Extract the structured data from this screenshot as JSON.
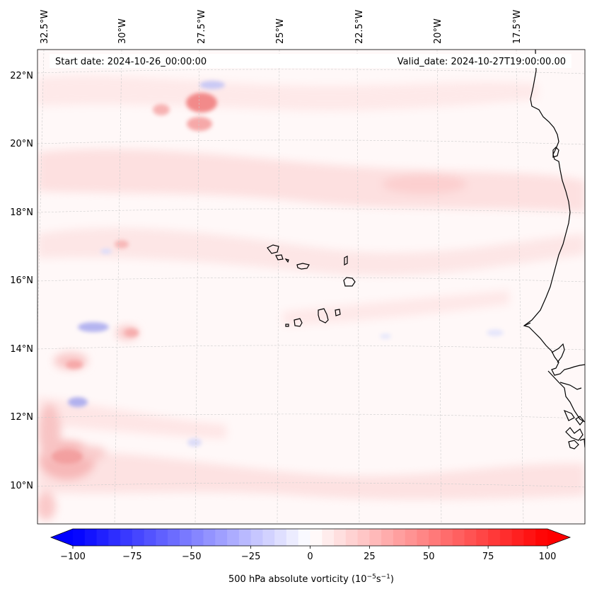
{
  "header": {
    "start_date": "Start date: 2024-10-26_00:00:00",
    "valid_date": "Valid_date: 2024-10-27T19:00:00.00"
  },
  "map": {
    "longitude_labels": [
      "32.5°W",
      "30°W",
      "27.5°W",
      "25°W",
      "22.5°W",
      "20°W",
      "17.5°W"
    ],
    "latitude_labels": [
      "22°N",
      "20°N",
      "18°N",
      "16°N",
      "14°N",
      "12°N",
      "10°N"
    ],
    "gridline_color": "#cccccc",
    "coastline_color": "#000000",
    "features": [
      "west-african-coastline",
      "cape-verde-islands"
    ]
  },
  "colorbar": {
    "label": "500 hPa absolute vorticity (10",
    "label_exp1": "−5",
    "label_mid": "s",
    "label_exp2": "−1",
    "label_end": ")",
    "ticks": [
      "−100",
      "−75",
      "−50",
      "−25",
      "0",
      "25",
      "50",
      "75",
      "100"
    ],
    "min": -100,
    "max": 100,
    "low_color": "#0000ff",
    "mid_color": "#ffffff",
    "high_color": "#ff0000"
  }
}
